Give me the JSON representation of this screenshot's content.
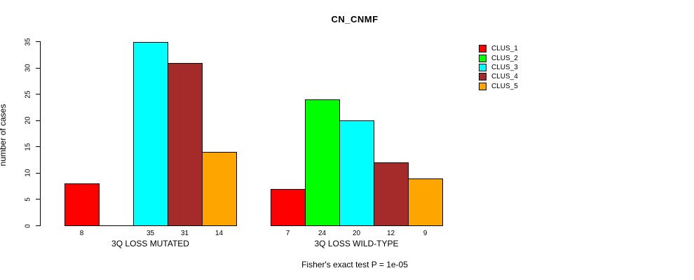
{
  "chart_data": {
    "type": "bar",
    "title": "CN_CNMF",
    "ylabel": "number of cases",
    "xlabel": "",
    "ylim": [
      0,
      35
    ],
    "yticks": [
      0,
      5,
      10,
      15,
      20,
      25,
      30,
      35
    ],
    "grid": false,
    "legend_position": "top-right",
    "series": [
      {
        "name": "CLUS_1",
        "color": "#FF0000"
      },
      {
        "name": "CLUS_2",
        "color": "#00FF00"
      },
      {
        "name": "CLUS_3",
        "color": "#00FFFF"
      },
      {
        "name": "CLUS_4",
        "color": "#A52A2A"
      },
      {
        "name": "CLUS_5",
        "color": "#FFA500"
      }
    ],
    "groups": [
      {
        "label": "3Q LOSS MUTATED",
        "values": [
          8,
          0,
          35,
          31,
          14
        ],
        "value_labels": [
          "8",
          "",
          "35",
          "31",
          "14"
        ]
      },
      {
        "label": "3Q LOSS WILD-TYPE",
        "values": [
          7,
          24,
          20,
          12,
          9
        ],
        "value_labels": [
          "7",
          "24",
          "20",
          "12",
          "9"
        ]
      }
    ],
    "annotation": "Fisher's exact test P = 1e-05"
  }
}
